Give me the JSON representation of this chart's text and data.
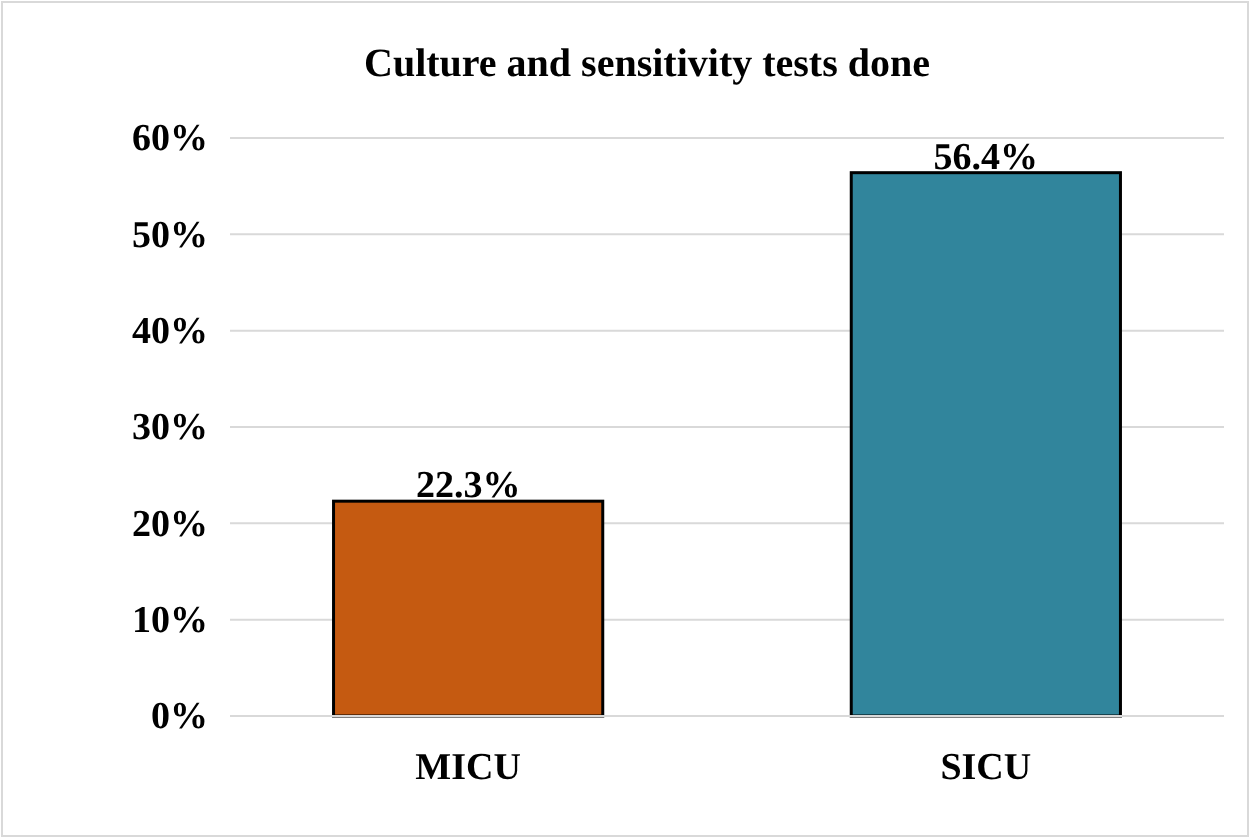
{
  "chart_data": {
    "type": "bar",
    "title": "Culture and sensitivity tests done",
    "categories": [
      "MICU",
      "SICU"
    ],
    "values": [
      22.3,
      56.4
    ],
    "colors": [
      "#c55a11",
      "#31859c"
    ],
    "ylim": [
      0,
      60
    ],
    "yticks": [
      {
        "value": 0,
        "label": "0%"
      },
      {
        "value": 10,
        "label": "10%"
      },
      {
        "value": 20,
        "label": "20%"
      },
      {
        "value": 30,
        "label": "30%"
      },
      {
        "value": 40,
        "label": "40%"
      },
      {
        "value": 50,
        "label": "50%"
      },
      {
        "value": 60,
        "label": "60%"
      }
    ],
    "value_labels": [
      "22.3%",
      "56.4%"
    ],
    "grid": "y"
  }
}
